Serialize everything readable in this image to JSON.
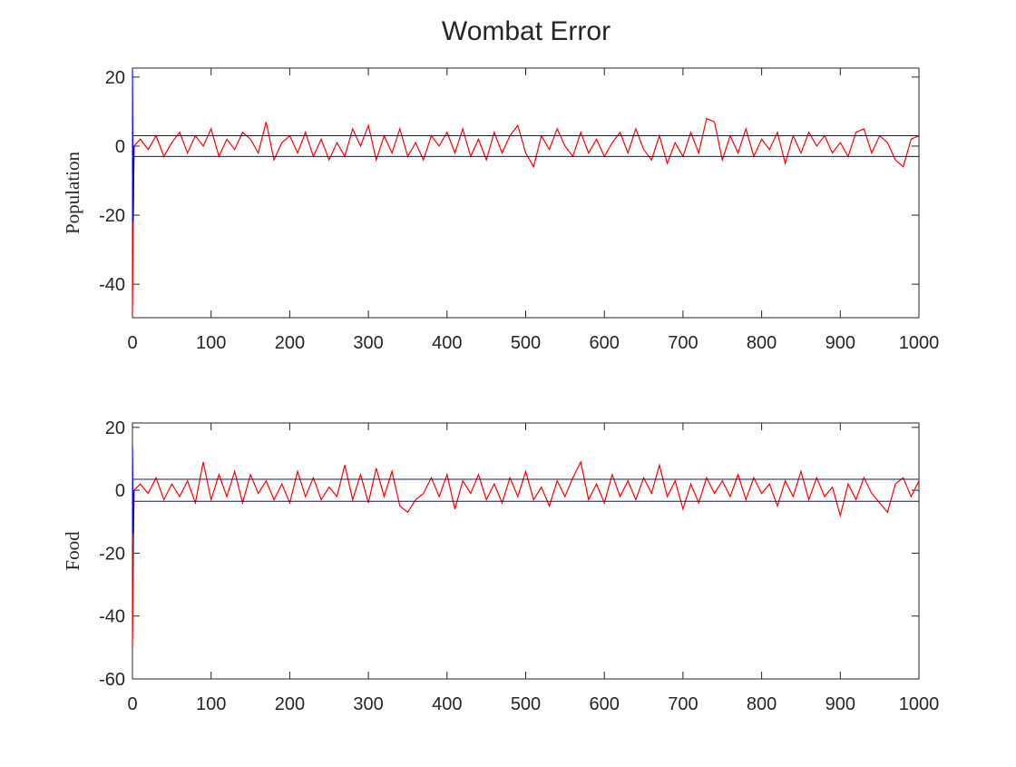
{
  "chart_data": [
    {
      "type": "line",
      "title": "Wombat Error",
      "ylabel": "Population",
      "xlim": [
        0,
        1000
      ],
      "ylim": [
        -49.7,
        22.6
      ],
      "xticks": [
        0,
        100,
        200,
        300,
        400,
        500,
        600,
        700,
        800,
        900,
        1000
      ],
      "yticks": [
        -40,
        -20,
        0,
        20
      ],
      "hlines": [
        3,
        -3
      ],
      "hline_color": "#1a1a4d",
      "series": [
        {
          "color": "#ff0000",
          "x": [
            0,
            1,
            2,
            10,
            20,
            30,
            40,
            50,
            60,
            70,
            80,
            90,
            100,
            110,
            120,
            130,
            140,
            150,
            160,
            170,
            180,
            190,
            200,
            210,
            220,
            230,
            240,
            250,
            260,
            270,
            280,
            290,
            300,
            310,
            320,
            330,
            340,
            350,
            360,
            370,
            380,
            390,
            400,
            410,
            420,
            430,
            440,
            450,
            460,
            470,
            480,
            490,
            500,
            510,
            520,
            530,
            540,
            550,
            560,
            570,
            580,
            590,
            600,
            610,
            620,
            630,
            640,
            650,
            660,
            670,
            680,
            690,
            700,
            710,
            720,
            730,
            740,
            750,
            760,
            770,
            780,
            790,
            800,
            810,
            820,
            830,
            840,
            850,
            860,
            870,
            880,
            890,
            900,
            910,
            920,
            930,
            940,
            950,
            960,
            970,
            980,
            990,
            1000
          ],
          "values": [
            -49,
            -22,
            0,
            2,
            -1,
            3,
            -3,
            1,
            4,
            -2,
            3,
            0,
            5,
            -3,
            2,
            -1,
            4,
            2,
            -2,
            7,
            -4,
            1,
            3,
            -2,
            4,
            -3,
            2,
            -4,
            1,
            -3,
            5,
            0,
            6,
            -4,
            3,
            -2,
            5,
            -3,
            1,
            -4,
            3,
            0,
            4,
            -2,
            5,
            -3,
            2,
            -4,
            4,
            -2,
            3,
            6,
            -2,
            -6,
            3,
            -1,
            5,
            0,
            -3,
            4,
            -2,
            2,
            -3,
            1,
            4,
            -2,
            5,
            -1,
            -4,
            3,
            -5,
            1,
            -3,
            4,
            -2,
            8,
            7,
            -4,
            3,
            -2,
            5,
            -3,
            2,
            -1,
            4,
            -5,
            3,
            -2,
            4,
            0,
            3,
            -2,
            1,
            -3,
            4,
            5,
            -2,
            3,
            1,
            -4,
            -6,
            2,
            3
          ]
        },
        {
          "color": "#0000ff",
          "x": [
            0,
            1,
            2
          ],
          "values": [
            22,
            -22,
            0
          ]
        }
      ]
    },
    {
      "type": "line",
      "ylabel": "Food",
      "xlim": [
        0,
        1000
      ],
      "ylim": [
        -60,
        21.4
      ],
      "xticks": [
        0,
        100,
        200,
        300,
        400,
        500,
        600,
        700,
        800,
        900,
        1000
      ],
      "yticks": [
        -60,
        -40,
        -20,
        0,
        20
      ],
      "hlines": [
        3.5,
        -3.5
      ],
      "hline_color": "#1a1a4d",
      "series": [
        {
          "color": "#ff0000",
          "x": [
            0,
            1,
            2,
            10,
            20,
            30,
            40,
            50,
            60,
            70,
            80,
            90,
            100,
            110,
            120,
            130,
            140,
            150,
            160,
            170,
            180,
            190,
            200,
            210,
            220,
            230,
            240,
            250,
            260,
            270,
            280,
            290,
            300,
            310,
            320,
            330,
            340,
            350,
            360,
            370,
            380,
            390,
            400,
            410,
            420,
            430,
            440,
            450,
            460,
            470,
            480,
            490,
            500,
            510,
            520,
            530,
            540,
            550,
            560,
            570,
            580,
            590,
            600,
            610,
            620,
            630,
            640,
            650,
            660,
            670,
            680,
            690,
            700,
            710,
            720,
            730,
            740,
            750,
            760,
            770,
            780,
            790,
            800,
            810,
            820,
            830,
            840,
            850,
            860,
            870,
            880,
            890,
            900,
            910,
            920,
            930,
            940,
            950,
            960,
            970,
            980,
            990,
            1000
          ],
          "values": [
            -50,
            -26,
            0,
            2,
            -1,
            4,
            -3,
            2,
            -2,
            3,
            -4,
            9,
            -3,
            5,
            -2,
            6,
            -4,
            5,
            -1,
            3,
            -3,
            2,
            -4,
            6,
            -2,
            4,
            -3,
            1,
            -2,
            8,
            -3,
            5,
            -4,
            7,
            -2,
            6,
            -5,
            -7,
            -3,
            -1,
            4,
            -2,
            5,
            -6,
            3,
            -1,
            5,
            -3,
            2,
            -4,
            4,
            -2,
            6,
            -3,
            1,
            -5,
            3,
            -2,
            4,
            9,
            -3,
            2,
            -4,
            5,
            -2,
            3,
            -3,
            4,
            -1,
            8,
            -2,
            3,
            -6,
            2,
            -4,
            4,
            -1,
            3,
            -2,
            5,
            -3,
            4,
            -1,
            2,
            -5,
            3,
            -2,
            6,
            -3,
            4,
            -2,
            1,
            -8,
            2,
            -3,
            4,
            -1,
            -4,
            -7,
            2,
            4,
            -2,
            3
          ]
        },
        {
          "color": "#0000ff",
          "x": [
            0,
            1,
            2
          ],
          "values": [
            14,
            -14,
            0
          ]
        }
      ]
    }
  ]
}
